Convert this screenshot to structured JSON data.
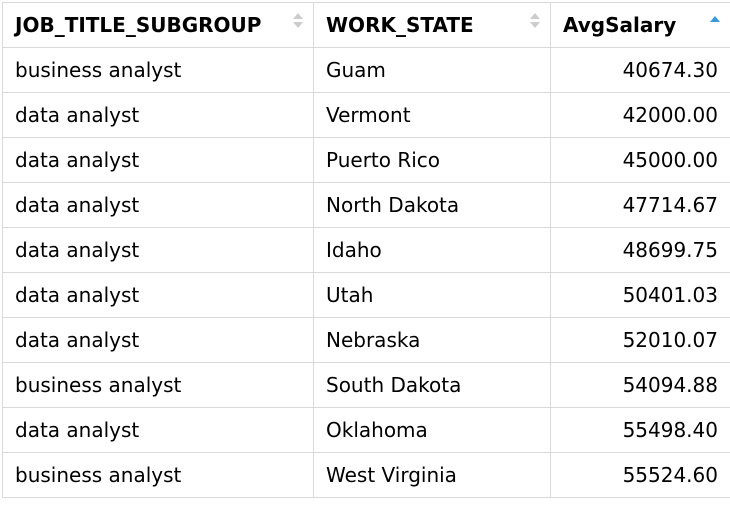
{
  "columns": [
    {
      "label": "JOB_TITLE_SUBGROUP",
      "sort": "none"
    },
    {
      "label": "WORK_STATE",
      "sort": "none"
    },
    {
      "label": "AvgSalary",
      "sort": "ascending"
    }
  ],
  "rows": [
    {
      "job": "business analyst",
      "state": "Guam",
      "salary": "40674.30"
    },
    {
      "job": "data analyst",
      "state": "Vermont",
      "salary": "42000.00"
    },
    {
      "job": "data analyst",
      "state": "Puerto Rico",
      "salary": "45000.00"
    },
    {
      "job": "data analyst",
      "state": "North Dakota",
      "salary": "47714.67"
    },
    {
      "job": "data analyst",
      "state": "Idaho",
      "salary": "48699.75"
    },
    {
      "job": "data analyst",
      "state": "Utah",
      "salary": "50401.03"
    },
    {
      "job": "data analyst",
      "state": "Nebraska",
      "salary": "52010.07"
    },
    {
      "job": "business analyst",
      "state": "South Dakota",
      "salary": "54094.88"
    },
    {
      "job": "data analyst",
      "state": "Oklahoma",
      "salary": "55498.40"
    },
    {
      "job": "business analyst",
      "state": "West Virginia",
      "salary": "55524.60"
    }
  ],
  "colors": {
    "sort_active": "#3a9ad9",
    "sort_inactive": "#cccccc",
    "border": "#d9d9d9"
  }
}
